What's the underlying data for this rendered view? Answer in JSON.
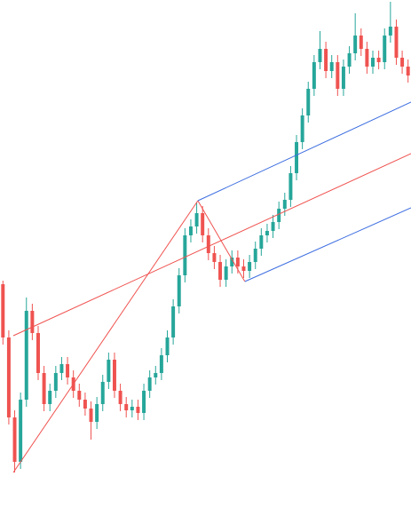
{
  "chart_data": {
    "type": "candlestick",
    "xlim": [
      -0.5,
      69.5
    ],
    "ylim": [
      0,
      572
    ],
    "up_color": "#26a69a",
    "down_color": "#ef5350",
    "open": [
      252,
      192,
      102,
      52,
      122,
      222,
      197,
      152,
      117,
      132,
      152,
      162,
      147,
      132,
      122,
      112,
      97,
      117,
      142,
      167,
      132,
      117,
      110,
      114,
      107,
      132,
      147,
      152,
      172,
      192,
      227,
      262,
      307,
      317,
      332,
      307,
      287,
      277,
      257,
      272,
      282,
      272,
      267,
      277,
      292,
      307,
      312,
      322,
      337,
      347,
      377,
      412,
      442,
      472,
      502,
      517,
      492,
      502,
      472,
      497,
      512,
      532,
      517,
      497,
      507,
      502,
      532,
      542,
      507,
      497
    ],
    "high": [
      256,
      200,
      110,
      130,
      237,
      230,
      205,
      160,
      140,
      160,
      170,
      170,
      155,
      140,
      130,
      120,
      125,
      150,
      175,
      175,
      140,
      125,
      122,
      122,
      140,
      155,
      160,
      180,
      200,
      235,
      270,
      315,
      325,
      344,
      340,
      315,
      295,
      285,
      280,
      290,
      290,
      280,
      285,
      300,
      315,
      320,
      330,
      345,
      355,
      385,
      420,
      450,
      480,
      510,
      537,
      525,
      510,
      510,
      505,
      520,
      557,
      540,
      525,
      515,
      515,
      540,
      570,
      550,
      515,
      505
    ],
    "low": [
      184,
      94,
      40,
      44,
      114,
      189,
      144,
      109,
      109,
      124,
      144,
      139,
      124,
      114,
      104,
      77,
      89,
      109,
      134,
      124,
      109,
      102,
      102,
      99,
      99,
      124,
      139,
      144,
      164,
      184,
      219,
      254,
      299,
      309,
      299,
      279,
      269,
      249,
      249,
      264,
      264,
      259,
      259,
      269,
      284,
      299,
      304,
      314,
      329,
      339,
      369,
      404,
      434,
      464,
      494,
      484,
      484,
      464,
      464,
      489,
      504,
      509,
      489,
      489,
      494,
      494,
      524,
      499,
      489,
      479
    ],
    "close": [
      192,
      102,
      52,
      122,
      222,
      197,
      152,
      117,
      132,
      152,
      162,
      147,
      132,
      122,
      112,
      97,
      117,
      142,
      167,
      132,
      117,
      110,
      114,
      107,
      132,
      147,
      152,
      172,
      192,
      227,
      262,
      307,
      317,
      332,
      307,
      287,
      277,
      257,
      272,
      282,
      272,
      267,
      277,
      292,
      307,
      312,
      322,
      337,
      347,
      377,
      412,
      442,
      472,
      502,
      517,
      492,
      502,
      472,
      497,
      512,
      532,
      517,
      497,
      507,
      502,
      532,
      542,
      507,
      497,
      487
    ],
    "drawings": [
      {
        "color": "#ef5350",
        "x": [
          1.77,
          33.2
        ],
        "y": [
          40,
          346
        ]
      },
      {
        "color": "#ef5350",
        "x": [
          33.2,
          41.2
        ],
        "y": [
          346,
          255
        ]
      },
      {
        "color": "#ef5350",
        "x": [
          1.77,
          69.5
        ],
        "y": [
          194,
          399
        ]
      },
      {
        "color": "#3d6ee0",
        "x": [
          33.2,
          69.5
        ],
        "y": [
          346,
          457
        ]
      },
      {
        "color": "#3d6ee0",
        "x": [
          41.2,
          69.5
        ],
        "y": [
          255,
          338
        ]
      }
    ]
  }
}
